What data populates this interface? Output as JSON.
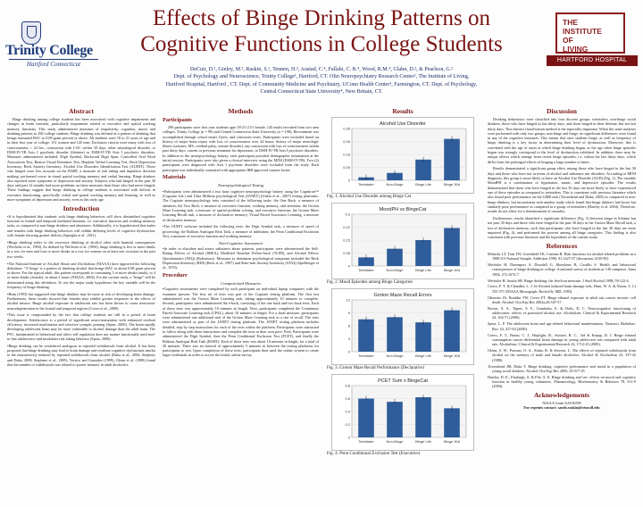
{
  "title": {
    "line1": "Effects of Binge Drinking Patterns on",
    "line2": "Cognitive Functions in College Students"
  },
  "authors": {
    "line1": "DeCuir, D.¹, Ginley, M.², Raskin, S.¹, Tennen, H.³, Austad, C.⁴, Fallahi, C. R.⁴, Wood, R.M.⁴, Glahn, D.², & Pearlson, G.²",
    "line2": "Dept. of Psychology and Neuroscience, Trinity College¹, Hartford, CT. Olin Neuropsychiatry Research Center², The Institute of Living,",
    "line3": "Hartford Hospital, Hartford , CT. Dept. of Community Medicine and Psychiatry, UConn Health Center³, Farmington, CT. Dept. of Psychology,",
    "line4": "Central Connecticut State University⁴, New Britain, CT."
  },
  "logos": {
    "left_name": "Trinity College",
    "left_sub": "Hartford Connecticut",
    "right_line1": "THE",
    "right_line2": "INSTITUTE",
    "right_line3": "OF",
    "right_line4": "LIVING",
    "right_bar": "HARTFORD HOSPITAL"
  },
  "abstract": {
    "heading": "Abstract",
    "text": "Binge drinking among college students has been associated with cognitive impairment and changes in brain function, particularly impairment related to executive and spatial working memory functions. This study administered measures of impulsivity, cognition, mood, and drinking patterns to 296 college students. Binge drinking was defined as a pattern of drinking that brings estimated BAC to 0.08 gram percent or above. All students were 18 to 21 years of age and in their first year of college; 151 women and 145 men. Exclusion criteria were many with loss of consciousness > 24 hrs., concussion with LOC within 30 days, other neurological disorder, or DSM-IV-TR Axis I psychotic disorder (lifetime) or DSM-IV-TR Axis I psychotic disorders. Measures administered included: Digit Symbol, Backward Digit Span, Controlled Oral Word Association Test, Benton Visual Retention Test, Hopkins Verbal Learning Test, Beck Depression Inventory, Beck Anxiety Inventory, Alcohol Use Disorders Identification Test (AUDIT). Those who binged were less accurate on the BART, a measure of risk taking and impulsive decision making; performed worse in visual spatial working memory and verbal learning. Binge drinkers also reported more symptoms of depression and anxiety. Subjects who had binged in the past 30 days and past 12 months had more problems on these measures than those who had never binged. These findings suggest that binge drinking in college students is associated with deficits in executive functioning, specifically verbal and spatial working memory and learning, as well as more symptoms of depression and anxiety, even at this early age."
  },
  "introduction": {
    "heading": "Introduction",
    "p1": "•It is hypothesized that students with binge drinking behaviors will show diminished cognitive function in frontal and temporal mediated domains, i.e. executive function and working memory tasks, as compared to non-binge drinkers and abstainers. Additionally, it is hypothesized that males and females with binge drinking behaviors will exhibit differing levels of cognitive dysfunction, with female showing greater deficits (Squeglia et al., 2011).",
    "p2": "•Binge drinking refers to the excessive drinking of alcohol often with harmful consequences (Wechsler et al., 1994). As defined by Wechsler et al. (1994), binge drinking is five or more drinks in a row for men and four or more drinks in a row for women on at least one occasion in the past two weeks.",
    "p3": "•The National Institute of Alcohol Abuse and Alcoholism (NIAAA) have approved the following definition: \"A 'binge' is a pattern of drinking alcohol that brings BAC to about 0.08 gram percent or above. For the typical adult, this pattern corresponds to consuming 5 or more drinks (male), or 4 or more drinks (female), in about 2 hours (NIAAA, 2004). For the current study, a \"binge\" will be determined using this definition. To test the major study hypotheses the key variable will be the frequency of binge drinking.",
    "p4": "•Hunt (1993) has suggested that binge drinkers may be more at risk of developing brain damage. Furthermore, these results showed that females may exhibit greater responses to the effects of alcohol misuse. Binge alcohol exposure in adolescent rats has been shown to cause neurotoxic neurodegeneration in the frontal and temporal regions (Crews et al., 2000).",
    "p5": "•This issue is compounded by the fact that college students are still in a period of brain development. Adolescence is a period of significant neuro-maturation with enhanced cerebral efficiency, increased myelination and selective synaptic pruning (Spear, 2000). The brain rapidly developing adolescent brain may be more vulnerable to alcohol damage than the adult brain. The PFC, fundamental to behavioral and affect self regulation does not mature functionally until mid-to-late adolescence and modulates risk taking behavior (Spear, 2000).",
    "p6": "•Binge drinking can be considered analogous to repeated withdrawals from alcohol. It has been proposed that binge drinking may lead to brain damage and resultant cognitive dysfunction similar to the neurotoxicity induced by repeated withdrawals from alcohol (Duka et al., 2004; Stephens and Duka, 2008; Stephens et al., 2005). Verrico and Gonzalez (1999), Glenn et al. (1988) found that the number of withdrawals was related to poorer memory in adult alcoholics."
  },
  "methods": {
    "heading": "Methods",
    "participants_heading": "Participants",
    "participants_text": "296 participants were first year students ages 18-21 (151 female, 145 male) recruited from two area colleges, Trinity College (n = 98) and Central Connecticut State University (n = 198). Recruitment was accomplished through school email, flyers, and classroom visits. Participants were excluded based on history of major brain injury with loss of consciousness over 24 hours, history of major neurologic illness (seizures, MS, cerebral palsy, seizure disorder), any concussion with loss of consciousness within past thirty days, current or previous treatment for depression, or DSM-IV-TR Axis I psychotic disorders. In addition to the neuropsychology battery, each participant provided demographic information at the initial session. Participants were also given a clinical interview using the MINI (DSM-IV-TR). Two (2) participants were diagnosed with Axis I psychotic disorders were excluded from the study. Each participant was individually consented with appropriate IRB approved consent forms.",
    "materials_heading": "Materials",
    "neuro_head": "Neuropsychological Testing",
    "materials_p1": "•Participants were administered a two hour cognitive neuropsychology battery using the Cognitron™ (Cogstate Ltd.) and Ultra Milliron psychological Test (JANET) (Glahn et al., 2007) testing platforms. The Cogstate neuropsychology tests consisted of the following tasks: the One Back, a measure of attention; the Two Back, a measure of executive function, working memory, and attention; the Groton Maze Learning task, a measure of spatial problem solving, and executive function; the Groton Maze Learning Recall task, a measure of declarative memory; Visual Paired Associates Learning, a measure of declarative memory.",
    "materials_p2": "•The JANET software included the following tests: the Digit Symbol task, a measure of speed of processing; the Balloon Analogue Risk Task, a measure of inhibition; the Penn Conditional Exclusion Test, a measure of executive function and working memory.",
    "nonc_head": "Non-Cognitive Assessment",
    "materials_p3": "•In order to elucidate and assess substance abuse patterns, participants were administered the Self-Rating Effects of Alcohol (SREA), Modified Timeline Follow-back (TLFB), and Alcohol Effects Questionnaire (AEQ) (Rohsenow). Measures to determine psychological symptoms included the Beck Depression Inventory (BDI) (Beck et al., 1997) and State-trait Anxiety Inventory (STAI) (Spielberger et al., 1970).",
    "procedure_heading": "Procedure",
    "comp_head": "Computerized Measures",
    "procedure_text": "•Cognitive assessments were completed by each participant on individual laptop computers with the examiner present. The first set of tests was part of the Cogstate testing platform. The first test administered was the Groton Maze Learning task, taking approximately 10 minutes to complete. Second, participants were administered the e-back, consisting of the one back and two back tests. Each of these tests was approximately 10 minutes in length. Next, participants completed the Continuous Paired Associate Learning task (CPAL), about 10 minutes in length. For a final measure, participants were administered one additional trial of the Groton Maze Learning task as a test of recall. The tests were administered as part of the JANET testing platform. The JANET testing platform includes detailed, step by step instructions for each of the tests within the platform. Participants were instructed to follow along with these instructions and complete the tests at their own pace. First, Participants were administered the Digit Symbol, then the Penn Conditional Exclusion Test (PCET), and finally the Balloon Analogue Risk Task (BART). Each of these tests was about 10 minutes in length, for a total of 30 minutes. There was an interval of approximately 5 minutes in between the testing platforms for participants to rest. Upon completion of these tests, participants then used the online system to create login credentials in order to access the initial, online survey."
  },
  "results": {
    "heading": "Results",
    "fig1_caption": "Fig. 1. Alcohol Use Disorder among Binge Cat",
    "fig2_caption": "Fig. 2. Mood Episodes among Binge Categories",
    "fig3_caption": "Fig. 3. Groton Maze Recall Performance (Declarative)",
    "fig4_caption": "Fig. 4. Penn Conditional Exclusion Test (Executive)"
  },
  "discussion": {
    "heading": "Discussion",
    "p1": "Drinking behaviours were classified into four discrete groups: teetotalers, non-binge social drinkers, those who have binged in last thirty days, and those binged in their lifetime, but not last thirty days. This distinct classification method is the especially important. When the same analyses were performed with only two groups, non-binge and binge, no significant differences were found in any of the cognitive measures. This means that once students binge, as well as frequency of binge drinking is a key factor in determining their level of dysfunction. Moreover, this is correlated with the age of onset at which binge drinking began, as the age when binge episodes began was strongly correspond to the level of dysfunction exhibited. In addition, there may be unique effects which emerge from recent binge episodes, i.e. within the last thirty days, which differ from the prolonged effects of binging a large number of times.",
    "p2": "Results demonstrated a significant group effect among those who have binged in the last 30 days and those who have not in terms of alcohol and substance use disorders. According to MINI diagnosis, this group is more likely to have an Alcohol Use Disorder (AUD) (Fig. 1). The variable MoodPH is a combination of hypomanic, manic, and depressive episodes. The results demonstrated that those who have binged in the last 30 days are more likely to have experienced one of these episodes as compared to teetotalers. This is consistent with previous literature which also found poor performance on the GMR task (Townshend and Duka, 2005) as compared to non-binge drinkers, but inconsistent with another study which found that binge drinkers had lower but similarly poor performance as compared to a group of teetotalers (Hartley et al. 2004). Therefore, results do not allow for a determination of causality.",
    "p3": "Furthermore, results identified a significant difference (Fig. 3) between binge in lifetime but not past 30 days and those who have binged in the past 30 days in the Groton Maze Recall task, a test of declarative memory, such that participants who have binged in the last 30 days are more impaired (Fig. 4), and performed the poorest among all binge categories. This finding is also consistent with previous literature and the hypothesis of the current study."
  },
  "references": {
    "heading": "References",
    "items": [
      "Moluski, LT, Tran TW, Greenfield TK, Caetano R. Risk functions for alcohol-related problems in a 1988 US National Sample. Addiction 1996; 91:1427-37 [discussion 1439-58].",
      "Wechsler H, Davenport A, Dowdall G, Moeykens B, Castillo S. Health and behavioral consequences of binge drinking in college. A national survey of students at 140 campuses. Jama 1994; 272:1672-7.",
      "Wechsler H, Austin SB. Binge drinking: the five/four measure. J Stud Alcohol 1998; 59:122-4.",
      "Crews, F. T. & Chandler, L. J. In Alcohol induced brain damage (eds. Hunt, W. A. & Nixon, S. J.) 355-371 (NIAAA Monograph, Rockville, MD, 1993).",
      "Obernier JA, Bouldin TW, Crews FT. Binge ethanol exposure in adult rats causes necrotic cell death. Alcohol Clin Exp Res 2002a;26:547-57.",
      "Brown, S. A., Tapert, S. F., Granholm, E. & Delis, D. C. Neurocognitive functioning of adolescents: effects of protracted alcohol use. Alcoholism: Clinical & Experimental Research 24, 164-71 (2000).",
      "Spear, L. P. The adolescent brain and age-related behavioral manifestations. Neurosci. Biobehav. Rev. 24, 417-63 (2000).",
      "Crews, F. T., Braun, C. J., Hoplight, B., Switzer, R. C., 3rd & Knapp, D. J. Binge ethanol consumption causes differential brain damage in young adolescent rats compared with adult rats. Alcoholism: Clinical & Experimental Research 24, 1712-23 (2000).",
      "Glenn, S. W., Parsons, O. A., Sinha, R. & Stevens, L. The effects of repeated withdrawals from alcohol on the memory of male and female alcoholics. Alcohol & Alcoholism 23, 337-42 (1988).",
      "Townshend JM, Duka T. Binge drinking, cognitive performance and mood in a population of young social drinkers. Alcohol Clin Exp Res 2005; 29:317-25.",
      "Hartley, D. E., Elsabagh, S. & File, S. E. Binge drinking and sex: effects on mood and cognitive function in healthy young volunteers. Pharmacology, Biochemistry & Behavior 78, 611-9 (2004)."
    ]
  },
  "acknowledgements": {
    "heading": "Acknowledgements",
    "line1": "NIAAA Grant AA016599",
    "line2": "For reprints contact: sarah.raskin@trincoll.edu"
  },
  "chart_data": [
    {
      "type": "bar",
      "title": "Alcohol Use Disorder",
      "categories": [
        "Teetotaler",
        "Non-Binge",
        "Binge Life",
        "Binge 30d"
      ],
      "values": [
        0.02,
        0.05,
        0.14,
        0.28
      ],
      "ylim": [
        0,
        0.35
      ],
      "bar_color": "#2f5d9b"
    },
    {
      "type": "bar",
      "title": "MoodPH vs BingeCat",
      "categories": [
        "Teetotaler",
        "Non-Binge",
        "Binge Life",
        "Binge 30d"
      ],
      "values": [
        0.05,
        0.1,
        0.15,
        0.22
      ],
      "ylim": [
        0,
        0.3
      ],
      "bar_color": "#2f5d9b"
    },
    {
      "type": "bar",
      "title": "Groton Maze Recall Errors",
      "categories": [
        "Teetotaler",
        "Non-Binge",
        "Binge Life",
        "Binge 30d"
      ],
      "values": [
        7.5,
        8.0,
        6.8,
        9.6
      ],
      "ylim": [
        0,
        12
      ],
      "bar_color": "#2f5d9b"
    },
    {
      "type": "bar",
      "title": "PCET Sum x BingeCat",
      "categories": [
        "Teetotaler",
        "Non-Binge",
        "Binge Life",
        "Binge 30d"
      ],
      "values": [
        0.6,
        0.55,
        0.62,
        0.45
      ],
      "ylim": [
        0,
        0.8
      ],
      "bar_color": "#2f5d9b"
    }
  ]
}
